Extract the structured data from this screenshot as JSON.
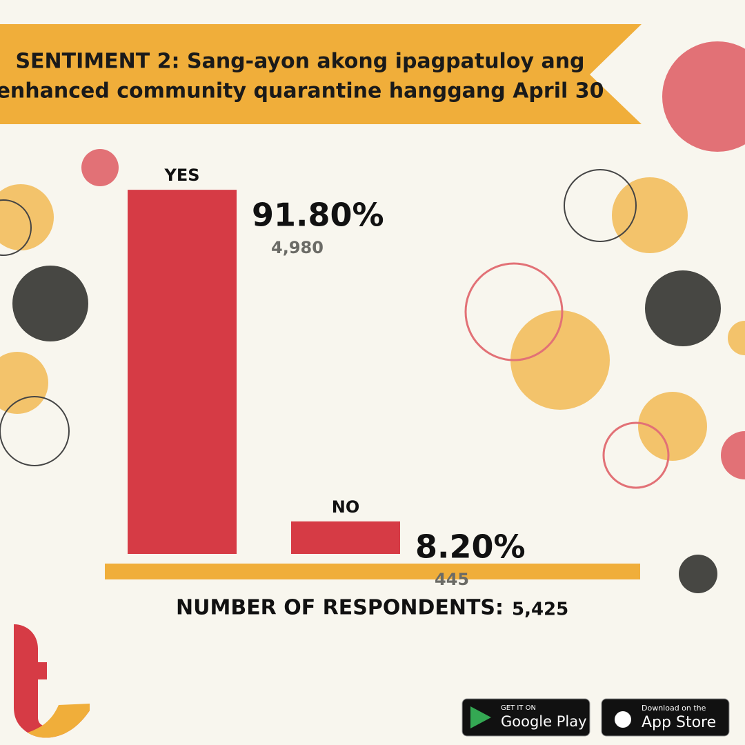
{
  "chart_data": {
    "type": "bar",
    "title": "SENTIMENT 2: Sang-ayon akong ipagpatuloy ang",
    "subtitle": "enhanced community quarantine hanggang April 30",
    "categories": [
      "YES",
      "NO"
    ],
    "values": [
      91.8,
      8.2
    ],
    "value_labels": [
      "91.80%",
      "8.20%"
    ],
    "counts": [
      {
        "value": 4980,
        "label": "4,980"
      },
      445
    ],
    "color": "#d63b45",
    "respondents_label": "NUMBER OF RESPONDENTS:",
    "respondents": {
      "value": 5425,
      "label": "5,425"
    }
  },
  "badges": {
    "google_top": "GET IT ON",
    "google": "Google Play",
    "apple_top": "Download on the",
    "apple": "App Store"
  }
}
